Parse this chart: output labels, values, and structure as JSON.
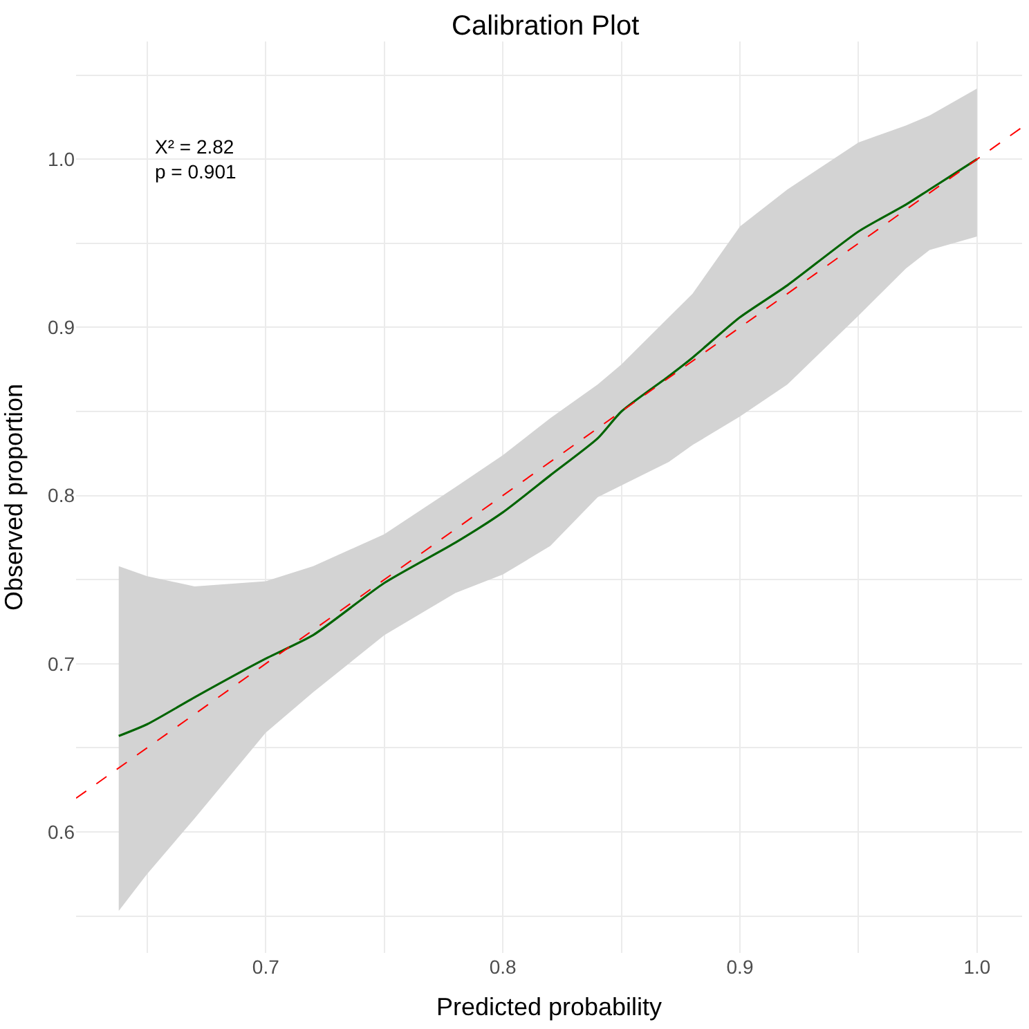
{
  "chart_data": {
    "type": "line",
    "title": "Calibration Plot",
    "xlabel": "Predicted probability",
    "ylabel": "Observed proportion",
    "annotations": [
      "X² = 2.82\np = 0.901"
    ],
    "series": [
      {
        "color": "#006400",
        "x": [
          0.638,
          0.65,
          0.67,
          0.7,
          0.72,
          0.75,
          0.78,
          0.8,
          0.82,
          0.84,
          0.85,
          0.87,
          0.88,
          0.9,
          0.92,
          0.95,
          0.97,
          0.98,
          1.0
        ],
        "values": [
          0.657,
          0.664,
          0.68,
          0.703,
          0.717,
          0.748,
          0.772,
          0.79,
          0.812,
          0.834,
          0.85,
          0.871,
          0.882,
          0.906,
          0.925,
          0.957,
          0.973,
          0.982,
          1.0
        ],
        "upper": [
          0.758,
          0.752,
          0.746,
          0.749,
          0.758,
          0.777,
          0.805,
          0.824,
          0.846,
          0.866,
          0.878,
          0.906,
          0.92,
          0.96,
          0.982,
          1.01,
          1.02,
          1.026,
          1.042
        ],
        "lower": [
          0.553,
          0.575,
          0.608,
          0.659,
          0.683,
          0.717,
          0.742,
          0.753,
          0.77,
          0.799,
          0.806,
          0.82,
          0.83,
          0.847,
          0.866,
          0.907,
          0.935,
          0.946,
          0.954
        ],
        "line_style": "solid"
      },
      {
        "type": "line",
        "color": "#ff0000",
        "x": [
          0.62,
          1.019
        ],
        "values": [
          0.62,
          1.019
        ],
        "line_style": "dashed"
      }
    ],
    "xlim": [
      0.62,
      1.019
    ],
    "ylim": [
      0.528,
      1.07
    ],
    "xticks": [
      {
        "value": 0.65,
        "label": null
      },
      0.7,
      {
        "value": 0.75,
        "label": null
      },
      0.8,
      {
        "value": 0.85,
        "label": null
      },
      0.9,
      {
        "value": 0.95,
        "label": null
      },
      "1.0"
    ],
    "yticks": [
      {
        "value": 0.55,
        "label": null
      },
      0.6,
      {
        "value": 0.65,
        "label": null
      },
      0.7,
      {
        "value": 0.75,
        "label": null
      },
      0.8,
      {
        "value": 0.85,
        "label": null
      },
      0.9,
      {
        "value": 0.95,
        "label": null
      },
      {
        "value": 1.0,
        "label": "1.0"
      },
      {
        "value": 1.05,
        "label": null
      }
    ],
    "grid": true,
    "marker": "none"
  }
}
